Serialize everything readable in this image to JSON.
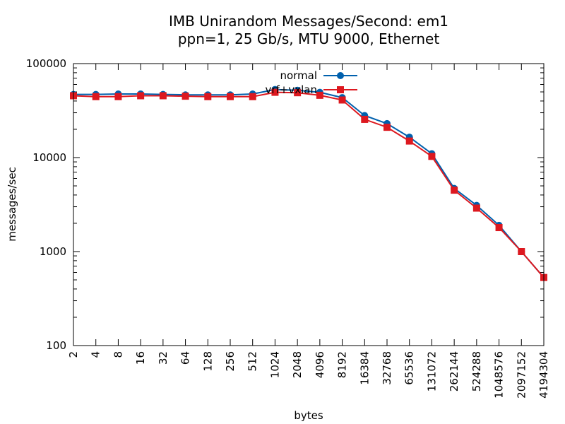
{
  "chart_data": {
    "type": "line",
    "title": "IMB Unirandom Messages/Second: em1",
    "subtitle": "ppn=1, 25 Gb/s, MTU 9000, Ethernet",
    "xlabel": "bytes",
    "ylabel": "messages/sec",
    "xscale": "log",
    "yscale": "log",
    "ylim": [
      100,
      100000
    ],
    "x_tick_labels": [
      "2",
      "4",
      "8",
      "16",
      "32",
      "64",
      "128",
      "256",
      "512",
      "1024",
      "2048",
      "4096",
      "8192",
      "16384",
      "32768",
      "65536",
      "131072",
      "262144",
      "524288",
      "1048576",
      "2097152",
      "4194304"
    ],
    "y_tick_labels": [
      "100",
      "1000",
      "10000",
      "100000"
    ],
    "legend_position": "top-center",
    "grid": false,
    "series": [
      {
        "name": "normal",
        "color": "#0060ad",
        "marker": "circle",
        "values": [
          47000,
          47000,
          47500,
          47500,
          47000,
          46500,
          46500,
          46500,
          47500,
          53000,
          52000,
          49500,
          43500,
          28000,
          23000,
          16500,
          11000,
          4700,
          3100,
          1900,
          1000,
          530
        ]
      },
      {
        "name": "vrf+vxlan",
        "color": "#dd181f",
        "marker": "square",
        "values": [
          45500,
          44500,
          44500,
          45500,
          45500,
          45000,
          44500,
          44500,
          44500,
          49500,
          49000,
          46000,
          41000,
          25500,
          21000,
          15000,
          10300,
          4500,
          2900,
          1800,
          1000,
          530
        ]
      }
    ]
  }
}
